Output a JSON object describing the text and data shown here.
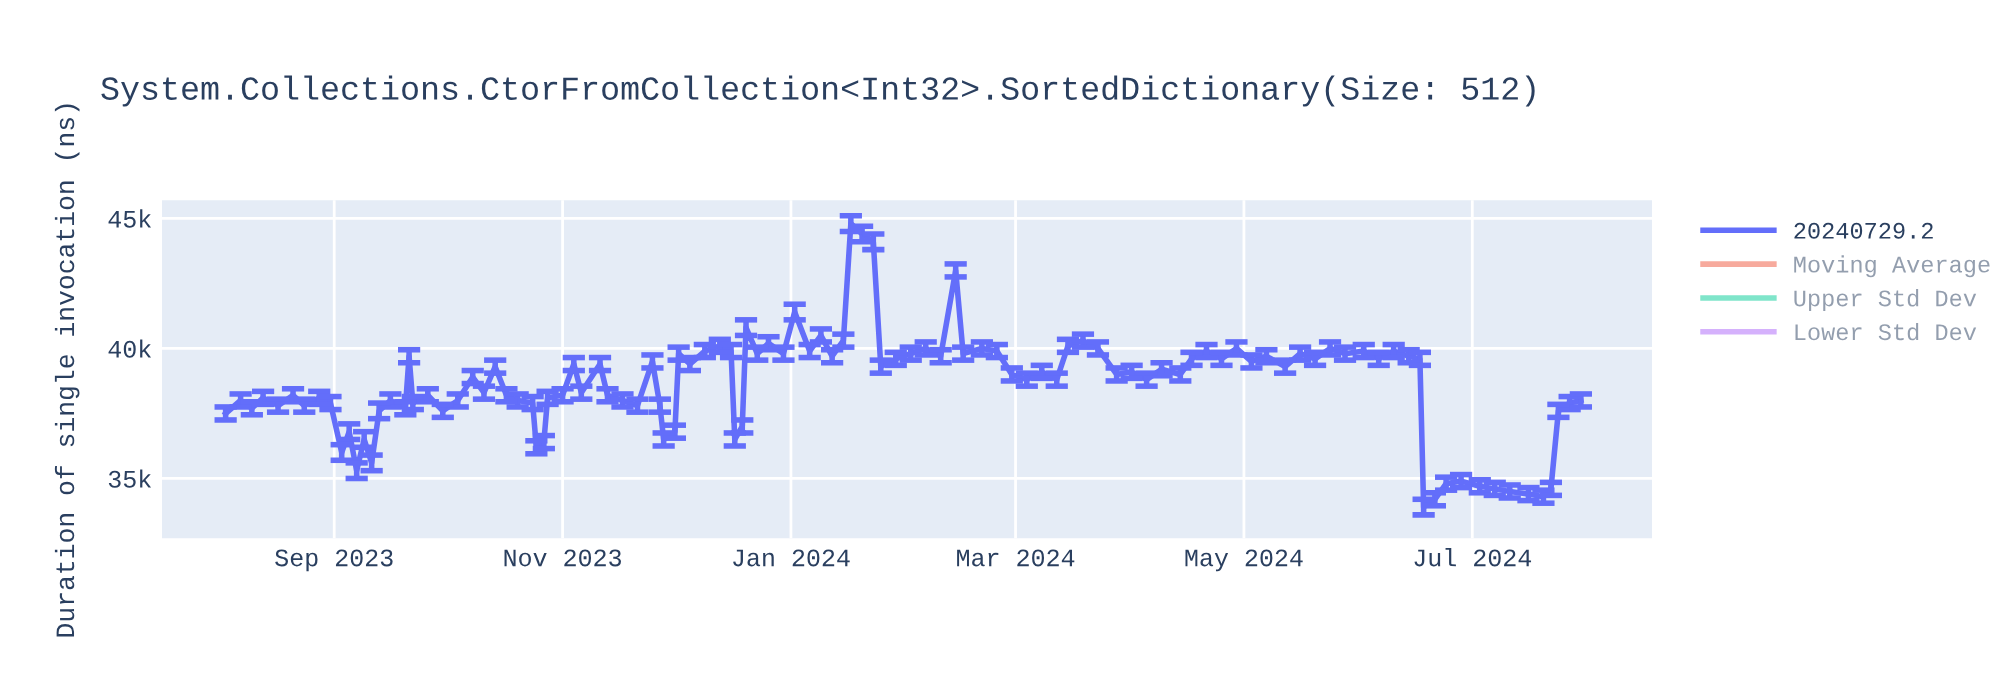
{
  "chart_data": {
    "type": "line",
    "title": "System.Collections.CtorFromCollection<Int32>.SortedDictionary(Size: 512)",
    "ylabel": "Duration of single invocation (ns)",
    "x": [
      "2023-08-03",
      "2023-08-07",
      "2023-08-10",
      "2023-08-13",
      "2023-08-17",
      "2023-08-21",
      "2023-08-24",
      "2023-08-28",
      "2023-08-31",
      "2023-09-03",
      "2023-09-05",
      "2023-09-07",
      "2023-09-09",
      "2023-09-11",
      "2023-09-13",
      "2023-09-16",
      "2023-09-20",
      "2023-09-21",
      "2023-09-22",
      "2023-09-26",
      "2023-09-30",
      "2023-10-04",
      "2023-10-08",
      "2023-10-11",
      "2023-10-14",
      "2023-10-17",
      "2023-10-20",
      "2023-10-24",
      "2023-10-25",
      "2023-10-27",
      "2023-10-28",
      "2023-11-01",
      "2023-11-04",
      "2023-11-06",
      "2023-11-11",
      "2023-11-13",
      "2023-11-17",
      "2023-11-21",
      "2023-11-25",
      "2023-11-27",
      "2023-11-28",
      "2023-12-01",
      "2023-12-02",
      "2023-12-05",
      "2023-12-09",
      "2023-12-13",
      "2023-12-16",
      "2023-12-17",
      "2023-12-19",
      "2023-12-20",
      "2023-12-23",
      "2023-12-26",
      "2023-12-30",
      "2024-01-02",
      "2024-01-06",
      "2024-01-09",
      "2024-01-12",
      "2024-01-15",
      "2024-01-17",
      "2024-01-20",
      "2024-01-23",
      "2024-01-25",
      "2024-01-29",
      "2024-02-02",
      "2024-02-06",
      "2024-02-10",
      "2024-02-14",
      "2024-02-16",
      "2024-02-21",
      "2024-02-25",
      "2024-02-29",
      "2024-03-04",
      "2024-03-08",
      "2024-03-12",
      "2024-03-15",
      "2024-03-19",
      "2024-03-23",
      "2024-03-28",
      "2024-04-01",
      "2024-04-05",
      "2024-04-09",
      "2024-04-14",
      "2024-04-17",
      "2024-04-21",
      "2024-04-25",
      "2024-04-29",
      "2024-05-03",
      "2024-05-07",
      "2024-05-12",
      "2024-05-16",
      "2024-05-20",
      "2024-05-24",
      "2024-05-28",
      "2024-06-02",
      "2024-06-06",
      "2024-06-10",
      "2024-06-14",
      "2024-06-17",
      "2024-06-18",
      "2024-06-21",
      "2024-06-24",
      "2024-06-28",
      "2024-07-03",
      "2024-07-07",
      "2024-07-11",
      "2024-07-16",
      "2024-07-20",
      "2024-07-22",
      "2024-07-24",
      "2024-07-27",
      "2024-07-30"
    ],
    "series": [
      {
        "name": "20240729.2",
        "color": "#636efa",
        "values": [
          37500,
          38000,
          37700,
          38100,
          37800,
          38200,
          37800,
          38100,
          37900,
          36000,
          36800,
          35300,
          36500,
          35600,
          37600,
          38000,
          37700,
          39700,
          37900,
          38200,
          37600,
          38000,
          38900,
          38300,
          39300,
          38200,
          38000,
          37900,
          36200,
          36400,
          38100,
          38200,
          39400,
          38300,
          39400,
          38200,
          38000,
          37800,
          39500,
          37800,
          36500,
          36800,
          39800,
          39400,
          39900,
          40100,
          39900,
          36500,
          37000,
          40800,
          39800,
          40200,
          39800,
          41400,
          39900,
          40500,
          39700,
          40300,
          44800,
          44400,
          44100,
          39300,
          39600,
          39800,
          40000,
          39700,
          43000,
          39800,
          40000,
          39900,
          39000,
          38800,
          39100,
          38800,
          40100,
          40300,
          40000,
          39000,
          39100,
          38800,
          39200,
          39000,
          39600,
          39900,
          39600,
          40000,
          39500,
          39700,
          39300,
          39800,
          39600,
          40000,
          39800,
          39900,
          39600,
          39900,
          39700,
          39600,
          33900,
          34200,
          34800,
          34900,
          34700,
          34600,
          34500,
          34400,
          34300,
          34600,
          37600,
          37900,
          38000
        ],
        "errors": [
          250,
          250,
          250,
          250,
          250,
          250,
          250,
          250,
          250,
          300,
          300,
          300,
          300,
          300,
          300,
          250,
          250,
          250,
          250,
          250,
          250,
          250,
          250,
          250,
          250,
          250,
          250,
          250,
          250,
          250,
          250,
          250,
          250,
          250,
          250,
          250,
          250,
          250,
          250,
          250,
          250,
          250,
          250,
          250,
          250,
          250,
          250,
          250,
          250,
          300,
          250,
          250,
          250,
          300,
          250,
          250,
          250,
          250,
          300,
          300,
          300,
          250,
          250,
          250,
          250,
          250,
          250,
          250,
          250,
          250,
          250,
          250,
          250,
          250,
          250,
          250,
          250,
          250,
          250,
          250,
          250,
          250,
          250,
          250,
          250,
          250,
          250,
          250,
          250,
          250,
          250,
          250,
          250,
          250,
          250,
          250,
          250,
          250,
          300,
          250,
          250,
          250,
          250,
          250,
          250,
          250,
          250,
          250,
          250,
          250,
          250
        ]
      },
      {
        "name": "Moving Average",
        "color": "#ef553b",
        "values": [
          null,
          null,
          null,
          null,
          null,
          null,
          null,
          null,
          null,
          null,
          null,
          null,
          null,
          null,
          null,
          null,
          null,
          null,
          null,
          null,
          null,
          null,
          null,
          null,
          null,
          null,
          null,
          null,
          null,
          null,
          null,
          null,
          null,
          null,
          null,
          null,
          null,
          null,
          null,
          null,
          null,
          null,
          null,
          null,
          null,
          null,
          null,
          null,
          null,
          null,
          null,
          null,
          null,
          null,
          null,
          null,
          null,
          null,
          null,
          null,
          null,
          null,
          null,
          null,
          null,
          null,
          null,
          null,
          null,
          null,
          null,
          null,
          null,
          null,
          null,
          null,
          null,
          null,
          null,
          null,
          null,
          null,
          null,
          null,
          null,
          null,
          null,
          null,
          null,
          null,
          null,
          null,
          null,
          null,
          null,
          null,
          null,
          null,
          null,
          null,
          null,
          null,
          null,
          null,
          null,
          null,
          null,
          null,
          null,
          null,
          null
        ]
      },
      {
        "name": "Upper Std Dev",
        "color": "#00cc96",
        "values": [
          null,
          null,
          null,
          null,
          null,
          null,
          null,
          null,
          null,
          null,
          null,
          null,
          null,
          null,
          null,
          null,
          null,
          null,
          null,
          null,
          null,
          null,
          null,
          null,
          null,
          null,
          null,
          null,
          null,
          null,
          null,
          null,
          null,
          null,
          null,
          null,
          null,
          null,
          null,
          null,
          null,
          null,
          null,
          null,
          null,
          null,
          null,
          null,
          null,
          null,
          null,
          null,
          null,
          null,
          null,
          null,
          null,
          null,
          null,
          null,
          null,
          null,
          null,
          null,
          null,
          null,
          null,
          null,
          null,
          null,
          null,
          null,
          null,
          null,
          null,
          null,
          null,
          null,
          null,
          null,
          null,
          null,
          null,
          null,
          null,
          null,
          null,
          null,
          null,
          null,
          null,
          null,
          null,
          null,
          null,
          null,
          null,
          null,
          null,
          null,
          null,
          null,
          null,
          null,
          null,
          null,
          null,
          null,
          null,
          null,
          null
        ]
      },
      {
        "name": "Lower Std Dev",
        "color": "#ab63fa",
        "values": [
          null,
          null,
          null,
          null,
          null,
          null,
          null,
          null,
          null,
          null,
          null,
          null,
          null,
          null,
          null,
          null,
          null,
          null,
          null,
          null,
          null,
          null,
          null,
          null,
          null,
          null,
          null,
          null,
          null,
          null,
          null,
          null,
          null,
          null,
          null,
          null,
          null,
          null,
          null,
          null,
          null,
          null,
          null,
          null,
          null,
          null,
          null,
          null,
          null,
          null,
          null,
          null,
          null,
          null,
          null,
          null,
          null,
          null,
          null,
          null,
          null,
          null,
          null,
          null,
          null,
          null,
          null,
          null,
          null,
          null,
          null,
          null,
          null,
          null,
          null,
          null,
          null,
          null,
          null,
          null,
          null,
          null,
          null,
          null,
          null,
          null,
          null,
          null,
          null,
          null,
          null,
          null,
          null,
          null,
          null,
          null,
          null,
          null,
          null,
          null,
          null,
          null,
          null,
          null,
          null,
          null,
          null,
          null,
          null,
          null,
          null
        ]
      }
    ],
    "xlim": [
      "2023-07-17",
      "2024-08-18"
    ],
    "xticks": [
      {
        "value": "2023-09-01",
        "label": "Sep 2023"
      },
      {
        "value": "2023-11-01",
        "label": "Nov 2023"
      },
      {
        "value": "2024-01-01",
        "label": "Jan 2024"
      },
      {
        "value": "2024-03-01",
        "label": "Mar 2024"
      },
      {
        "value": "2024-05-01",
        "label": "May 2024"
      },
      {
        "value": "2024-07-01",
        "label": "Jul 2024"
      }
    ],
    "ylim": [
      32700,
      45700
    ],
    "yticks": [
      {
        "value": 35000,
        "label": "35k"
      },
      {
        "value": 40000,
        "label": "40k"
      },
      {
        "value": 45000,
        "label": "45k"
      }
    ],
    "grid": true,
    "legend": "right",
    "marker": "none",
    "line_style": "solid"
  }
}
